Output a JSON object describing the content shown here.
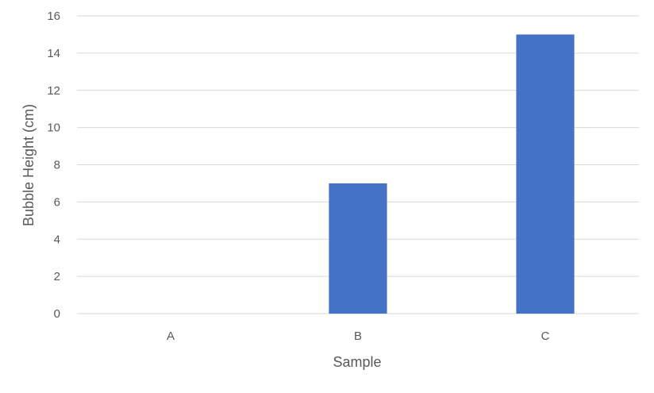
{
  "chart_data": {
    "type": "bar",
    "categories": [
      "A",
      "B",
      "C"
    ],
    "values": [
      0,
      7,
      15
    ],
    "title": "",
    "xlabel": "Sample",
    "ylabel": "Bubble Height (cm)",
    "ylim": [
      0,
      16
    ],
    "yticks": [
      0,
      2,
      4,
      6,
      8,
      10,
      12,
      14,
      16
    ],
    "grid": true,
    "legend": "none",
    "bar_color": "#4472C4",
    "grid_color": "#D9D9D9",
    "text_color": "#595959"
  }
}
